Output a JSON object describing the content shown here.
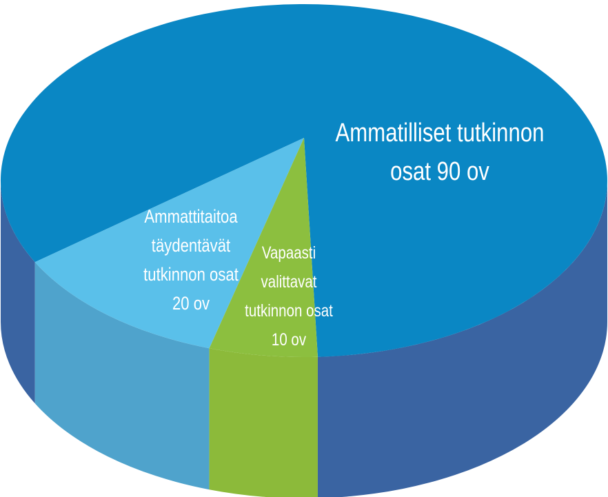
{
  "chart_data": {
    "type": "pie",
    "style": "3d",
    "title": "",
    "series": [
      {
        "values": [
          90,
          20,
          10
        ],
        "slices": [
          {
            "label_lines": [
              "Ammatilliset tutkinnon",
              "osat 90 ov"
            ],
            "value": 90,
            "color_top": "#0a87c4",
            "color_side": "#3a64a2"
          },
          {
            "label_lines": [
              "Ammattitaitoa",
              "täydentävät",
              "tutkinnon osat",
              "20 ov"
            ],
            "value": 20,
            "color_top": "#5ac0ea",
            "color_side": "#4fa3cc"
          },
          {
            "label_lines": [
              "Vapaasti",
              "valittavat",
              "tutkinnon osat",
              "10 ov"
            ],
            "value": 10,
            "color_top": "#8cbf3f",
            "color_side": "#8cba3a"
          }
        ]
      }
    ],
    "legend": "none"
  }
}
